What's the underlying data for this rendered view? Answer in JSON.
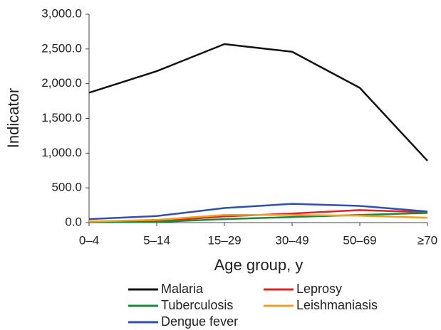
{
  "chart_data": {
    "type": "line",
    "xlabel": "Age group, y",
    "ylabel": "Indicator",
    "categories": [
      "0–4",
      "5–14",
      "15–29",
      "30–49",
      "50–69",
      "≥70"
    ],
    "series": [
      {
        "name": "Malaria",
        "color": "#111111",
        "values": [
          1870,
          2180,
          2570,
          2460,
          1940,
          890
        ]
      },
      {
        "name": "Leprosy",
        "color": "#e02424",
        "values": [
          10,
          20,
          90,
          130,
          180,
          150
        ]
      },
      {
        "name": "Tuberculosis",
        "color": "#1a8a3a",
        "values": [
          5,
          10,
          50,
          80,
          110,
          140
        ]
      },
      {
        "name": "Leishmaniasis",
        "color": "#f0a020",
        "values": [
          15,
          40,
          110,
          110,
          100,
          70
        ]
      },
      {
        "name": "Dengue fever",
        "color": "#3050b0",
        "values": [
          50,
          95,
          210,
          270,
          240,
          160
        ]
      }
    ],
    "ylim": [
      0,
      3000
    ],
    "yticks": [
      {
        "value": 0,
        "label": "0.0"
      },
      {
        "value": 500,
        "label": "500.0"
      },
      {
        "value": 1000,
        "label": "1,000.0"
      },
      {
        "value": 1500,
        "label": "1,500.0"
      },
      {
        "value": 2000,
        "label": "2,000.0"
      },
      {
        "value": 2500,
        "label": "2,500.0"
      },
      {
        "value": 3000,
        "label": "3,000.0"
      }
    ],
    "legend": "bottom"
  }
}
